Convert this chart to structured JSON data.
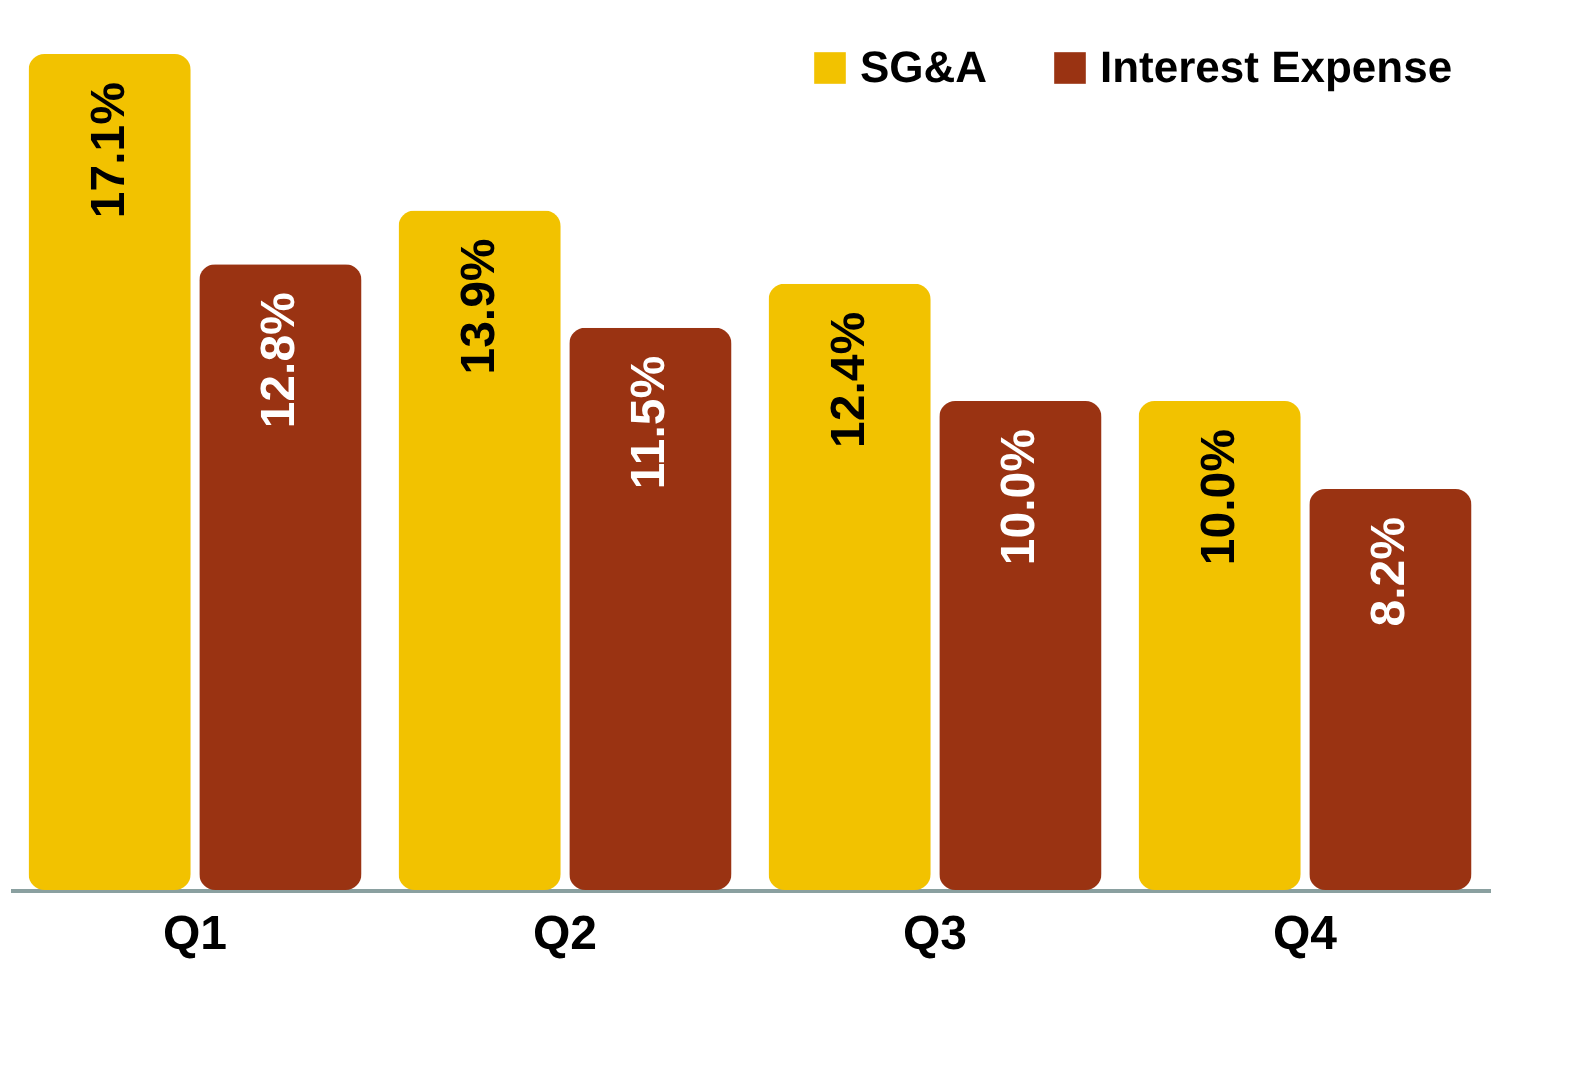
{
  "chart_data": {
    "type": "bar",
    "categories": [
      "Q1",
      "Q2",
      "Q3",
      "Q4"
    ],
    "series": [
      {
        "name": "SG&A",
        "color": "#f2c200",
        "values": [
          17.1,
          13.9,
          12.4,
          10.0
        ],
        "value_labels": [
          "17.1%",
          "13.9%",
          "12.4%",
          "10.0%"
        ]
      },
      {
        "name": "Interest Expense",
        "color": "#9a3312",
        "values": [
          12.8,
          11.5,
          10.0,
          8.2
        ],
        "value_labels": [
          "12.8%",
          "11.5%",
          "10.0%",
          "8.2%"
        ]
      }
    ],
    "legend": "top right"
  }
}
